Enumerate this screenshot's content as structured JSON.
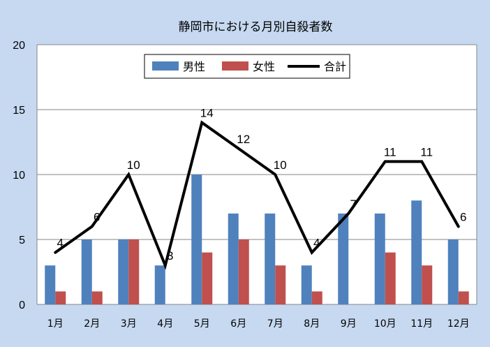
{
  "chart_data": {
    "type": "bar",
    "title": "静岡市における月別自殺者数",
    "categories": [
      "1月",
      "2月",
      "3月",
      "4月",
      "5月",
      "6月",
      "7月",
      "8月",
      "9月",
      "10月",
      "11月",
      "12月"
    ],
    "series": [
      {
        "name": "男性",
        "type": "bar",
        "color": "#4f81bd",
        "values": [
          3,
          5,
          5,
          3,
          10,
          7,
          7,
          3,
          7,
          7,
          8,
          5
        ]
      },
      {
        "name": "女性",
        "type": "bar",
        "color": "#c0504d",
        "values": [
          1,
          1,
          5,
          0,
          4,
          5,
          3,
          1,
          0,
          4,
          3,
          1
        ]
      },
      {
        "name": "合計",
        "type": "line",
        "color": "#000000",
        "values": [
          4,
          6,
          10,
          3,
          14,
          12,
          10,
          4,
          7,
          11,
          11,
          6
        ]
      }
    ],
    "yticks": [
      "0",
      "5",
      "10",
      "15",
      "20"
    ],
    "ylim": [
      0,
      20
    ],
    "grid": true,
    "legend_position": "top-center",
    "data_labels": [
      "4",
      "6",
      "10",
      "3",
      "14",
      "12",
      "10",
      "4",
      "7",
      "11",
      "11",
      "6"
    ]
  }
}
